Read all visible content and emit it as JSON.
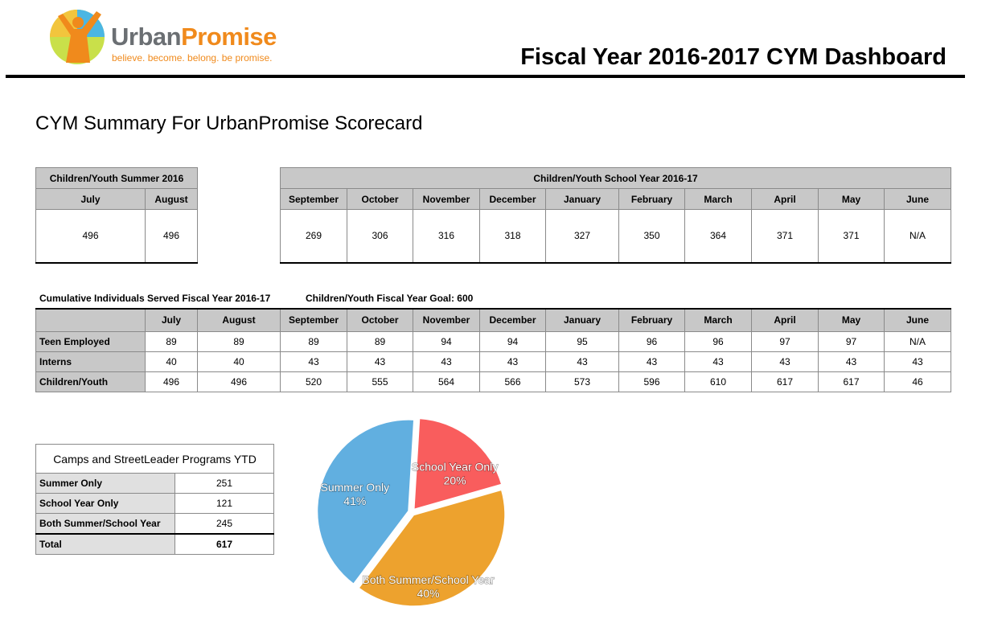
{
  "header": {
    "brand_urban": "Urban",
    "brand_promise": "Promise",
    "tagline": "believe. become. belong. be promise.",
    "title": "Fiscal Year 2016-2017 CYM Dashboard"
  },
  "summary_heading": "CYM Summary For UrbanPromise Scorecard",
  "summer": {
    "title": "Children/Youth Summer 2016",
    "months": [
      "July",
      "August"
    ],
    "values": [
      "496",
      "496"
    ]
  },
  "school": {
    "title": "Children/Youth School Year 2016-17",
    "months": [
      "September",
      "October",
      "November",
      "December",
      "January",
      "February",
      "March",
      "April",
      "May",
      "June"
    ],
    "values": [
      "269",
      "306",
      "316",
      "318",
      "327",
      "350",
      "364",
      "371",
      "371",
      "N/A"
    ]
  },
  "cumulative": {
    "label": "Cumulative Individuals Served Fiscal Year 2016-17",
    "goal_label": "Children/Youth Fiscal Year Goal: 600",
    "months": [
      "July",
      "August",
      "September",
      "October",
      "November",
      "December",
      "January",
      "February",
      "March",
      "April",
      "May",
      "June"
    ],
    "rows": [
      {
        "label": "Teen Employed",
        "values": [
          "89",
          "89",
          "89",
          "89",
          "94",
          "94",
          "95",
          "96",
          "96",
          "97",
          "97",
          "N/A"
        ]
      },
      {
        "label": "Interns",
        "values": [
          "40",
          "40",
          "43",
          "43",
          "43",
          "43",
          "43",
          "43",
          "43",
          "43",
          "43",
          "43"
        ]
      },
      {
        "label": "Children/Youth",
        "values": [
          "496",
          "496",
          "520",
          "555",
          "564",
          "566",
          "573",
          "596",
          "610",
          "617",
          "617",
          "46"
        ]
      }
    ]
  },
  "camps": {
    "title": "Camps and StreetLeader Programs YTD",
    "rows": [
      {
        "label": "Summer Only",
        "value": "251"
      },
      {
        "label": "School Year Only",
        "value": "121"
      },
      {
        "label": "Both Summer/School Year",
        "value": "245"
      }
    ],
    "total_label": "Total",
    "total_value": "617"
  },
  "chart_data": {
    "type": "pie",
    "title": "",
    "categories": [
      "School Year Only",
      "Both Summer/School Year",
      "Summer Only"
    ],
    "values": [
      121,
      245,
      251
    ],
    "percent_labels": [
      "20%",
      "40%",
      "41%"
    ],
    "colors": [
      "#f95d5d",
      "#eda22e",
      "#61afe0"
    ],
    "start_category": "School Year Only",
    "exploded": true
  }
}
